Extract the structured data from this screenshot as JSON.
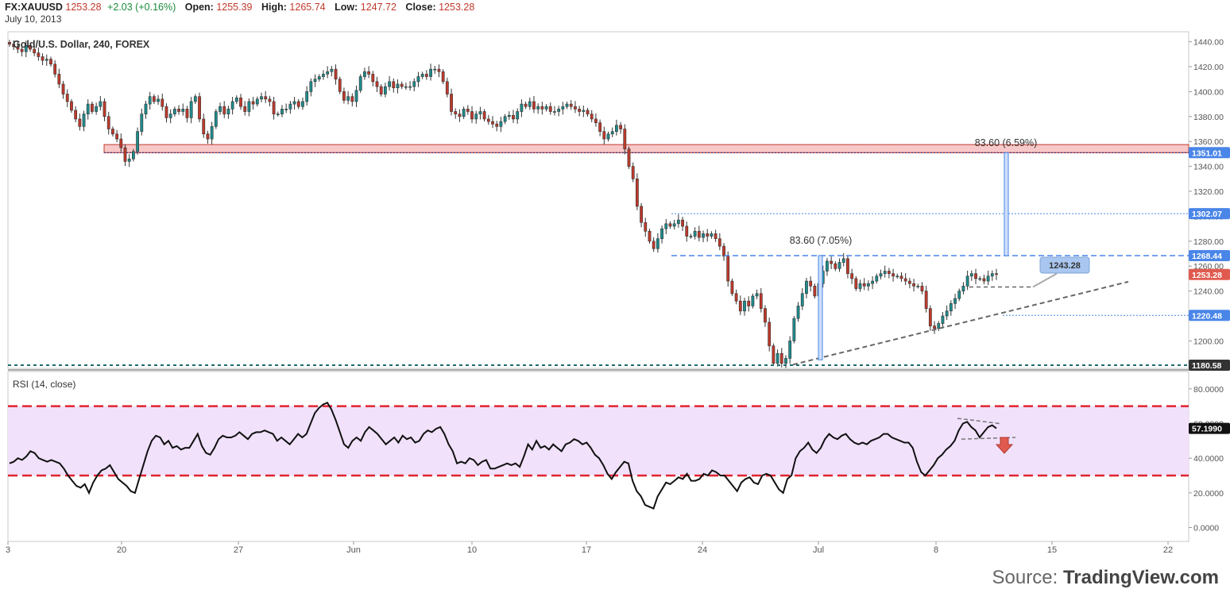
{
  "header": {
    "symbol": "FX:XAUUSD",
    "last": "1253.28",
    "change": "+2.03 (+0.16%)",
    "open_label": "Open:",
    "open": "1255.39",
    "high_label": "High:",
    "high": "1265.74",
    "low_label": "Low:",
    "low": "1247.72",
    "close_label": "Close:",
    "close": "1253.28",
    "date": "July 10, 2013"
  },
  "source": {
    "prefix": "Source: ",
    "name": "TradingView.com"
  },
  "colors": {
    "up": "#1e8c8c",
    "down": "#c0392b",
    "fib": "#4a86e8",
    "rsi_band": "#f1e1fb",
    "rsi_line_dash": "#e0242f",
    "zone": "#f8c8c8"
  },
  "chart_data": [
    {
      "type": "candlestick",
      "title": "Gold/U.S. Dollar, 240, FOREX",
      "x_ticks": [
        "3",
        "20",
        "27",
        "Jun",
        "10",
        "17",
        "24",
        "Jul",
        "8",
        "15",
        "22"
      ],
      "y_ticks": [
        "1440.00",
        "1420.00",
        "1400.00",
        "1380.00",
        "1360.00",
        "1340.00",
        "1320.00",
        "1300.00",
        "1280.00",
        "1260.00",
        "1240.00",
        "1220.00",
        "1200.00"
      ],
      "ylim": [
        1178,
        1448
      ],
      "price_labels": [
        {
          "value": 1351.01,
          "text": "1351.01",
          "color": "#4a86e8"
        },
        {
          "value": 1302.07,
          "text": "1302.07",
          "color": "#4a86e8"
        },
        {
          "value": 1268.44,
          "text": "1268.44",
          "color": "#4a86e8"
        },
        {
          "value": 1253.28,
          "text": "1253.28",
          "color": "#e05a4f"
        },
        {
          "value": 1220.48,
          "text": "1220.48",
          "color": "#4a86e8"
        },
        {
          "value": 1180.58,
          "text": "1180.58",
          "color": "#333333"
        }
      ],
      "close_series": [
        1438,
        1436,
        1434,
        1432,
        1437,
        1434,
        1431,
        1428,
        1425,
        1426,
        1422,
        1414,
        1406,
        1398,
        1392,
        1385,
        1378,
        1372,
        1382,
        1390,
        1384,
        1388,
        1392,
        1380,
        1370,
        1366,
        1362,
        1355,
        1344,
        1346,
        1352,
        1368,
        1382,
        1390,
        1396,
        1392,
        1394,
        1388,
        1379,
        1382,
        1386,
        1384,
        1386,
        1379,
        1392,
        1396,
        1378,
        1366,
        1362,
        1372,
        1384,
        1388,
        1382,
        1386,
        1392,
        1395,
        1388,
        1384,
        1392,
        1390,
        1394,
        1396,
        1394,
        1392,
        1382,
        1382,
        1386,
        1386,
        1390,
        1392,
        1388,
        1392,
        1400,
        1408,
        1410,
        1412,
        1414,
        1416,
        1418,
        1410,
        1400,
        1393,
        1396,
        1392,
        1401,
        1412,
        1416,
        1414,
        1408,
        1404,
        1398,
        1404,
        1408,
        1403,
        1406,
        1404,
        1404,
        1404,
        1408,
        1412,
        1414,
        1412,
        1418,
        1418,
        1416,
        1408,
        1398,
        1384,
        1382,
        1380,
        1386,
        1384,
        1378,
        1382,
        1384,
        1378,
        1376,
        1374,
        1372,
        1376,
        1380,
        1381,
        1378,
        1384,
        1390,
        1388,
        1392,
        1386,
        1388,
        1386,
        1388,
        1384,
        1384,
        1386,
        1388,
        1390,
        1388,
        1386,
        1384,
        1385,
        1382,
        1378,
        1375,
        1368,
        1362,
        1366,
        1368,
        1373,
        1370,
        1354,
        1340,
        1330,
        1308,
        1295,
        1288,
        1280,
        1274,
        1282,
        1290,
        1294,
        1292,
        1294,
        1297,
        1292,
        1284,
        1284,
        1288,
        1283,
        1286,
        1284,
        1286,
        1282,
        1276,
        1268,
        1248,
        1238,
        1232,
        1224,
        1232,
        1228,
        1236,
        1238,
        1226,
        1215,
        1196,
        1182,
        1190,
        1182,
        1186,
        1200,
        1218,
        1228,
        1238,
        1248,
        1244,
        1236,
        1246,
        1256,
        1264,
        1262,
        1258,
        1263,
        1266,
        1254,
        1250,
        1242,
        1246,
        1244,
        1246,
        1248,
        1252,
        1254,
        1256,
        1254,
        1252,
        1252,
        1250,
        1248,
        1246,
        1244,
        1244,
        1240,
        1226,
        1212,
        1210,
        1214,
        1220,
        1224,
        1230,
        1234,
        1240,
        1244,
        1252,
        1254,
        1250,
        1250,
        1248,
        1252,
        1254,
        1253.28
      ],
      "resistance_zone": {
        "from": 1351.01,
        "to": 1357.5
      },
      "support_level": 1180.58,
      "fib_levels": [
        1302.07,
        1268.44,
        1220.48
      ],
      "annotations": [
        {
          "text": "83.60 (7.05%)"
        },
        {
          "text": "83.60 (6.59%)"
        },
        {
          "text": "1243.28"
        }
      ]
    },
    {
      "type": "line",
      "title": "RSI (14, close)",
      "y_ticks": [
        "80.0000",
        "60.0000",
        "40.0000",
        "20.0000",
        "0.0000"
      ],
      "ylim": [
        -8,
        90
      ],
      "bands": [
        70,
        30
      ],
      "last_value": "57.1990",
      "values": [
        37,
        38,
        40,
        39,
        41,
        44,
        43,
        40,
        39,
        38,
        39,
        38,
        37,
        34,
        30,
        27,
        24,
        23,
        25,
        20,
        26,
        30,
        33,
        34,
        36,
        32,
        28,
        26,
        24,
        21,
        20,
        28,
        36,
        44,
        50,
        53,
        52,
        48,
        50,
        46,
        47,
        45,
        46,
        46,
        50,
        54,
        47,
        43,
        42,
        46,
        51,
        53,
        52,
        52,
        53,
        55,
        53,
        51,
        54,
        55,
        55,
        56,
        55,
        54,
        50,
        52,
        50,
        48,
        51,
        54,
        52,
        54,
        60,
        66,
        69,
        71,
        72,
        68,
        62,
        55,
        48,
        46,
        50,
        52,
        50,
        55,
        58,
        56,
        54,
        51,
        48,
        50,
        52,
        49,
        53,
        51,
        52,
        49,
        50,
        54,
        56,
        55,
        57,
        58,
        54,
        48,
        44,
        37,
        38,
        37,
        40,
        39,
        36,
        38,
        39,
        34,
        34,
        35,
        36,
        37,
        36,
        37,
        35,
        41,
        48,
        45,
        50,
        46,
        47,
        45,
        48,
        46,
        44,
        48,
        49,
        51,
        50,
        48,
        49,
        46,
        42,
        40,
        36,
        31,
        28,
        32,
        35,
        38,
        37,
        27,
        21,
        18,
        13,
        12,
        11,
        18,
        22,
        26,
        25,
        27,
        29,
        28,
        31,
        27,
        27,
        28,
        31,
        30,
        33,
        32,
        30,
        30,
        27,
        24,
        21,
        26,
        28,
        29,
        26,
        25,
        30,
        31,
        30,
        26,
        22,
        20,
        28,
        30,
        40,
        44,
        46,
        49,
        45,
        43,
        46,
        51,
        54,
        52,
        51,
        53,
        54,
        51,
        49,
        48,
        49,
        48,
        50,
        51,
        52,
        54,
        54,
        52,
        51,
        50,
        49,
        49,
        46,
        38,
        32,
        30,
        33,
        36,
        40,
        42,
        45,
        47,
        50,
        56,
        60,
        61,
        58,
        56,
        52,
        55,
        58,
        59,
        57.2
      ]
    }
  ]
}
